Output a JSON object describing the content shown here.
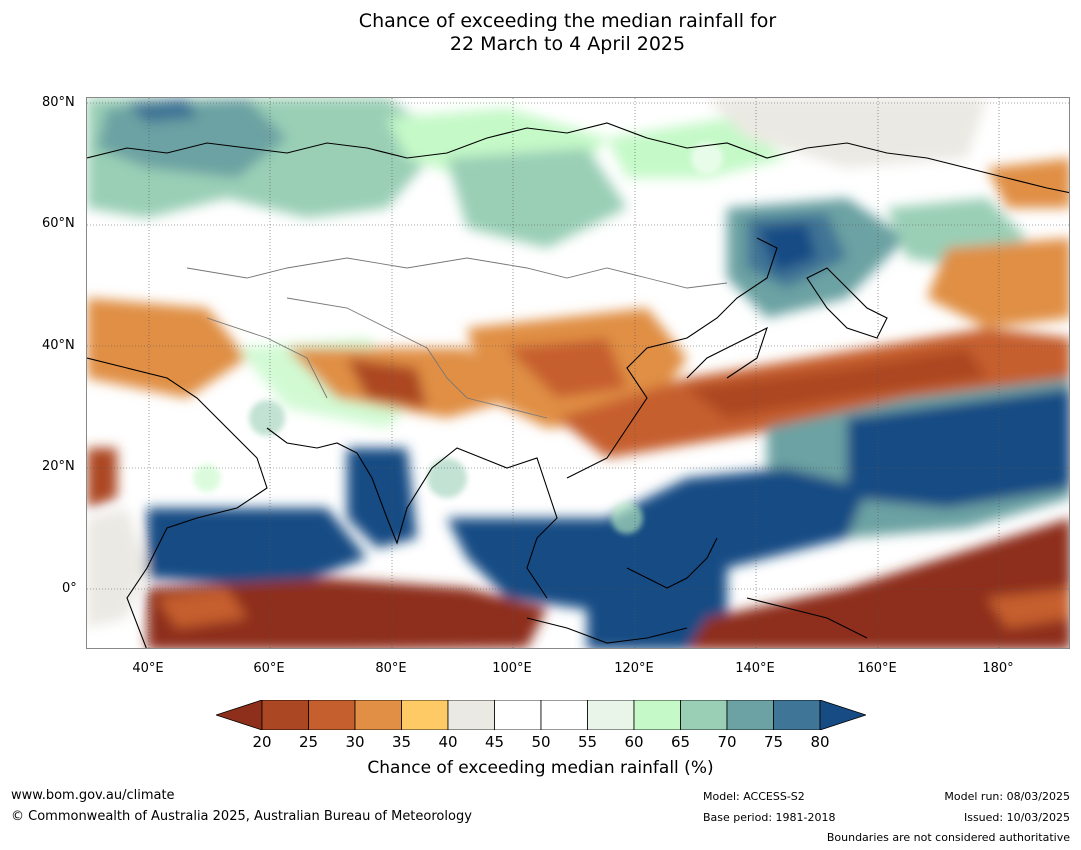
{
  "title_line1": "Chance of exceeding the median rainfall for",
  "title_line2": "22 March to 4 April 2025",
  "lat_labels": [
    "80°N",
    "60°N",
    "40°N",
    "20°N",
    "0°"
  ],
  "lon_labels": [
    "40°E",
    "60°E",
    "80°E",
    "100°E",
    "120°E",
    "140°E",
    "160°E",
    "180°"
  ],
  "colorbar": {
    "ticks": [
      "20",
      "25",
      "30",
      "35",
      "40",
      "45",
      "50",
      "55",
      "60",
      "65",
      "70",
      "75",
      "80"
    ],
    "colors": [
      "#8e2f1b",
      "#ac4723",
      "#c65f2e",
      "#e08f44",
      "#fdca66",
      "#ebe9e3",
      "#ffffff",
      "#ffffff",
      "#e9f5e9",
      "#c5f9c8",
      "#9acfb6",
      "#6ca2a3",
      "#3f7596",
      "#164b84"
    ],
    "label": "Chance of exceeding median rainfall (%)"
  },
  "footer": {
    "website": "www.bom.gov.au/climate",
    "copyright": "© Commonwealth of Australia 2025, Australian Bureau of Meteorology",
    "model": "Model: ACCESS-S2",
    "base_period": "Base period: 1981-2018",
    "model_run": "Model run: 08/03/2025",
    "issued": "Issued: 10/03/2025",
    "disclaimer": "Boundaries are not considered authoritative"
  }
}
